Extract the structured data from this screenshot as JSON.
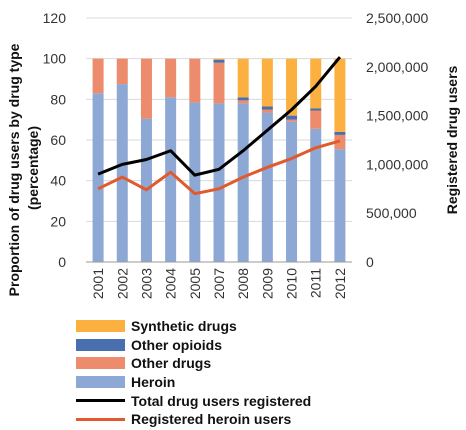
{
  "chart_data": {
    "type": "bar",
    "title": "",
    "categories": [
      "2001",
      "2002",
      "2003",
      "2004",
      "2005",
      "2007",
      "2008",
      "2009",
      "2010",
      "2011",
      "2012"
    ],
    "y_left": {
      "label": "Proportion of drug users by drug type (percentage)",
      "label_lines": [
        "Proportion of drug users by drug type",
        "(percentage)"
      ],
      "ylim": [
        0,
        120
      ],
      "ticks": [
        0,
        20,
        40,
        60,
        80,
        100,
        120
      ]
    },
    "y_right": {
      "label": "Registered drug users",
      "ylim": [
        0,
        2500000
      ],
      "ticks": [
        0,
        500000,
        1000000,
        1500000,
        2000000,
        2500000
      ],
      "tick_labels": [
        "0",
        "500,000",
        "1,000,000",
        "1,500,000",
        "2,000,000",
        "2,500,000"
      ]
    },
    "series": [
      {
        "name": "Heroin",
        "kind": "stacked-bar",
        "color": "#8ea8d6",
        "values": [
          83,
          87.5,
          70.5,
          81,
          78.5,
          78,
          78,
          73.5,
          69,
          65.5,
          55.5
        ]
      },
      {
        "name": "Other drugs",
        "kind": "stacked-bar",
        "color": "#ec8c6c",
        "values": [
          17,
          12.5,
          29.5,
          19,
          21.5,
          20,
          1.5,
          1.5,
          1,
          9,
          7
        ]
      },
      {
        "name": "Other opioids",
        "kind": "stacked-bar",
        "color": "#4a6fb0",
        "values": [
          0,
          0,
          0,
          0,
          0,
          1.5,
          1.5,
          1.5,
          2,
          1,
          1.5
        ]
      },
      {
        "name": "Synthetic drugs",
        "kind": "stacked-bar",
        "color": "#fbb040",
        "values": [
          0,
          0,
          0,
          0,
          0,
          0.5,
          19,
          23.5,
          28,
          24.5,
          36
        ]
      },
      {
        "name": "Total drug users registered",
        "kind": "line",
        "axis": "right",
        "color": "#000000",
        "values": [
          900000,
          1000000,
          1050000,
          1140000,
          890000,
          950000,
          1140000,
          1350000,
          1560000,
          1800000,
          2100000
        ]
      },
      {
        "name": "Registered heroin users",
        "kind": "line",
        "axis": "right",
        "color": "#e15a2c",
        "values": [
          750000,
          870000,
          740000,
          920000,
          700000,
          750000,
          870000,
          970000,
          1060000,
          1170000,
          1240000
        ]
      }
    ],
    "legend_order": [
      "Synthetic drugs",
      "Other opioids",
      "Other drugs",
      "Heroin",
      "Total drug users registered",
      "Registered heroin users"
    ],
    "legend_position": "bottom",
    "grid": true
  }
}
